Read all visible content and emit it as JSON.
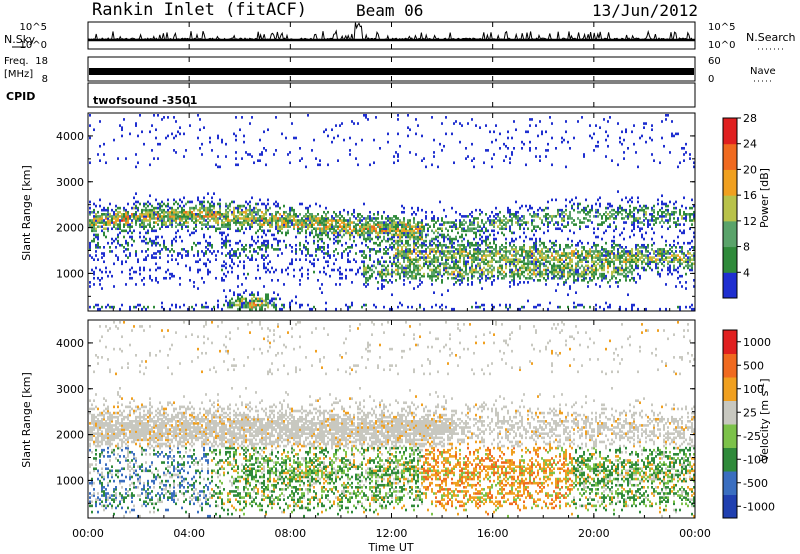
{
  "header": {
    "station": "Rankin Inlet (fitACF)",
    "beam": "Beam 06",
    "date": "13/Jun/2012"
  },
  "panels": {
    "nsky": {
      "label": "N.Sky",
      "right_label": "N.Search",
      "ticks_left": [
        "10^5",
        "10^0"
      ],
      "ticks_right": [
        "10^5",
        "10^0"
      ]
    },
    "freq": {
      "label_line1": "Freq.",
      "label_line2": "[MHz]",
      "right_label": "Nave",
      "ticks_left": [
        "18",
        "8"
      ],
      "ticks_right": [
        "60",
        "0"
      ]
    },
    "cpid": {
      "label": "CPID",
      "value": "twofsound -3501"
    }
  },
  "chart_data": [
    {
      "type": "heatmap",
      "name": "power",
      "ylabel": "Slant Range [km]",
      "xlabel": "",
      "ylim": [
        180,
        4500
      ],
      "y_ticks": [
        "1000",
        "2000",
        "3000",
        "4000"
      ],
      "colorbar": {
        "label": "Power [dB]",
        "ticks": [
          "4",
          "8",
          "12",
          "16",
          "20",
          "24",
          "28"
        ],
        "colors": [
          "#1f2fd0",
          "#2f8a3a",
          "#5aa36a",
          "#b8c24a",
          "#f0a020",
          "#f06a20",
          "#e02020"
        ]
      }
    },
    {
      "type": "heatmap",
      "name": "velocity",
      "ylabel": "Slant Range [km]",
      "xlabel": "Time UT",
      "ylim": [
        180,
        4500
      ],
      "y_ticks": [
        "1000",
        "2000",
        "3000",
        "4000"
      ],
      "x_ticks": [
        "00:00",
        "04:00",
        "08:00",
        "12:00",
        "16:00",
        "20:00",
        "00:00"
      ],
      "colorbar": {
        "label": "Velocity [m s^-1]",
        "ticks": [
          "1000",
          "500",
          "100",
          "25",
          "-25",
          "-100",
          "-500",
          "-1000"
        ],
        "colors": [
          "#2040b0",
          "#3a6ec0",
          "#2f8a3a",
          "#7cc24a",
          "#c8c8c0",
          "#f0a020",
          "#f06a20",
          "#e02020"
        ]
      }
    }
  ]
}
